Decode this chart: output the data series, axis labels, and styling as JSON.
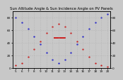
{
  "title": "Sun Altitude Angle & Sun Incidence Angle on PV Panels",
  "blue_label": "Sun Altitude Angle",
  "red_label": "Sun Incidence Angle on PV",
  "x_values": [
    5,
    6,
    7,
    8,
    9,
    10,
    11,
    12,
    13,
    14,
    15,
    16,
    17,
    18,
    19,
    20
  ],
  "blue_y": [
    80,
    72,
    62,
    50,
    38,
    25,
    14,
    8,
    14,
    25,
    38,
    50,
    62,
    72,
    80,
    85
  ],
  "red_y": [
    5,
    8,
    18,
    30,
    42,
    55,
    65,
    70,
    65,
    55,
    42,
    30,
    18,
    8,
    5,
    2
  ],
  "blue_color": "#0000cc",
  "red_color": "#cc0000",
  "bg_color": "#c8c8c8",
  "plot_bg": "#c8c8c8",
  "grid_color": "#aaaaaa",
  "ylim": [
    0,
    90
  ],
  "xlim": [
    4.5,
    20.5
  ],
  "title_fontsize": 3.8,
  "tick_fontsize": 3.0,
  "marker_size": 1.2,
  "yticks": [
    0,
    20,
    40,
    60,
    80
  ],
  "xticks": [
    5,
    6,
    7,
    8,
    9,
    10,
    11,
    12,
    13,
    14,
    15,
    16,
    17,
    18,
    19,
    20
  ]
}
